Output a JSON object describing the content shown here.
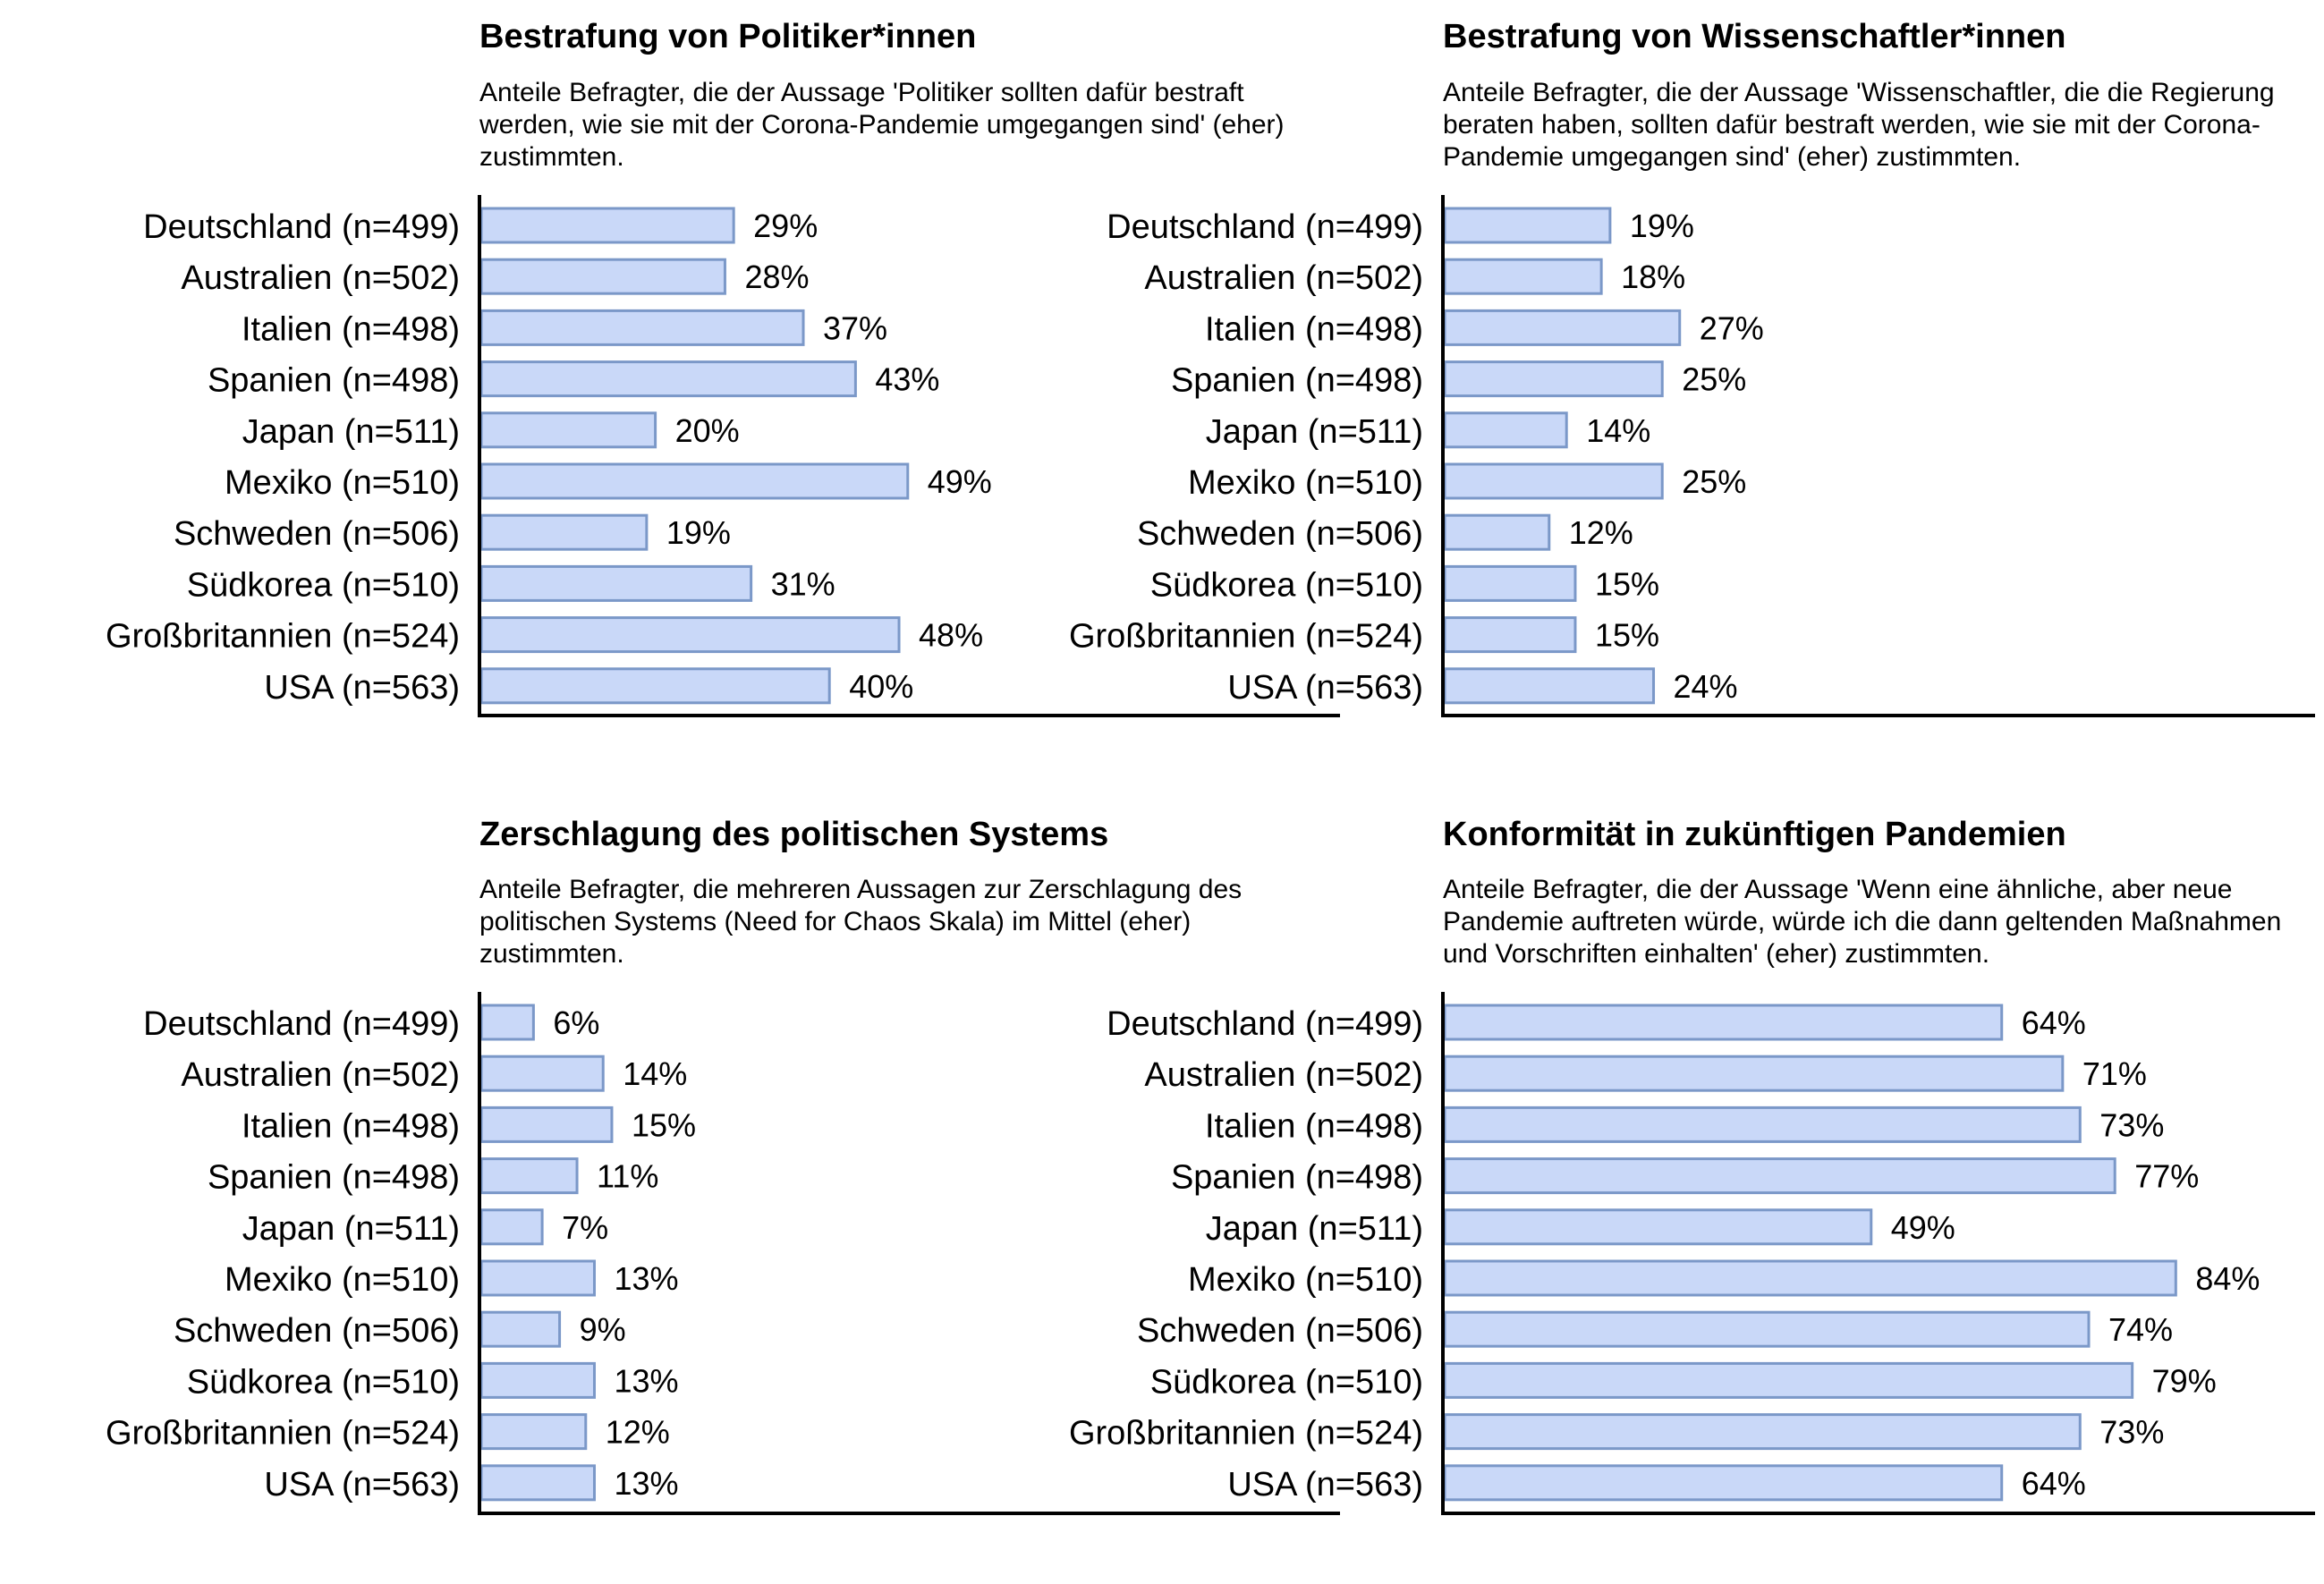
{
  "colors": {
    "bar_fill": "#c9d8f8",
    "bar_stroke": "#7b98c8",
    "axis": "#000000"
  },
  "chart_data": [
    {
      "type": "bar",
      "orientation": "horizontal",
      "title": "Bestrafung von Politiker*innen",
      "subtitle": "Anteile Befragter, die der Aussage 'Politiker sollten dafür bestraft werden, wie sie mit der Corona-Pandemie umgegangen sind' (eher) zustimmten.",
      "categories": [
        "Deutschland (n=499)",
        "Australien (n=502)",
        "Italien (n=498)",
        "Spanien (n=498)",
        "Japan (n=511)",
        "Mexiko (n=510)",
        "Schweden (n=506)",
        "Südkorea (n=510)",
        "Großbritannien (n=524)",
        "USA (n=563)"
      ],
      "values": [
        29,
        28,
        37,
        43,
        20,
        49,
        19,
        31,
        48,
        40
      ],
      "data_labels": [
        "29%",
        "28%",
        "37%",
        "43%",
        "20%",
        "49%",
        "19%",
        "31%",
        "48%",
        "40%"
      ],
      "unit": "%",
      "xlim": [
        0,
        100
      ],
      "grid": false
    },
    {
      "type": "bar",
      "orientation": "horizontal",
      "title": "Bestrafung von Wissenschaftler*innen",
      "subtitle": "Anteile Befragter, die der Aussage 'Wissenschaftler, die die Regierung beraten haben, sollten dafür bestraft werden, wie sie mit der Corona-Pandemie umgegangen sind' (eher) zustimmten.",
      "categories": [
        "Deutschland (n=499)",
        "Australien (n=502)",
        "Italien (n=498)",
        "Spanien (n=498)",
        "Japan (n=511)",
        "Mexiko (n=510)",
        "Schweden (n=506)",
        "Südkorea (n=510)",
        "Großbritannien (n=524)",
        "USA (n=563)"
      ],
      "values": [
        19,
        18,
        27,
        25,
        14,
        25,
        12,
        15,
        15,
        24
      ],
      "data_labels": [
        "19%",
        "18%",
        "27%",
        "25%",
        "14%",
        "25%",
        "12%",
        "15%",
        "15%",
        "24%"
      ],
      "unit": "%",
      "xlim": [
        0,
        100
      ],
      "grid": false
    },
    {
      "type": "bar",
      "orientation": "horizontal",
      "title": "Zerschlagung des politischen Systems",
      "subtitle": "Anteile Befragter, die mehreren Aussagen zur Zerschlagung des politischen Systems (Need for Chaos Skala) im Mittel (eher) zustimmten.",
      "categories": [
        "Deutschland (n=499)",
        "Australien (n=502)",
        "Italien (n=498)",
        "Spanien (n=498)",
        "Japan (n=511)",
        "Mexiko (n=510)",
        "Schweden (n=506)",
        "Südkorea (n=510)",
        "Großbritannien (n=524)",
        "USA (n=563)"
      ],
      "values": [
        6,
        14,
        15,
        11,
        7,
        13,
        9,
        13,
        12,
        13
      ],
      "data_labels": [
        "6%",
        "14%",
        "15%",
        "11%",
        "7%",
        "13%",
        "9%",
        "13%",
        "12%",
        "13%"
      ],
      "unit": "%",
      "xlim": [
        0,
        100
      ],
      "grid": false
    },
    {
      "type": "bar",
      "orientation": "horizontal",
      "title": "Konformität in zukünftigen Pandemien",
      "subtitle": "Anteile Befragter, die der Aussage 'Wenn eine ähnliche, aber neue Pandemie auftreten würde, würde ich die dann geltenden Maßnahmen und Vorschriften einhalten' (eher) zustimmten.",
      "categories": [
        "Deutschland (n=499)",
        "Australien (n=502)",
        "Italien (n=498)",
        "Spanien (n=498)",
        "Japan (n=511)",
        "Mexiko (n=510)",
        "Schweden (n=506)",
        "Südkorea (n=510)",
        "Großbritannien (n=524)",
        "USA (n=563)"
      ],
      "values": [
        64,
        71,
        73,
        77,
        49,
        84,
        74,
        79,
        73,
        64
      ],
      "data_labels": [
        "64%",
        "71%",
        "73%",
        "77%",
        "49%",
        "84%",
        "74%",
        "79%",
        "73%",
        "64%"
      ],
      "unit": "%",
      "xlim": [
        0,
        100
      ],
      "grid": false
    }
  ]
}
